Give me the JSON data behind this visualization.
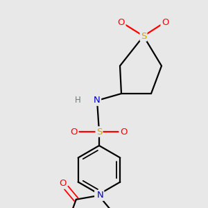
{
  "bg_color": "#e8e8e8",
  "atom_colors": {
    "S_ring": "#ccaa00",
    "S_sul": "#ccaa00",
    "O": "#ff0000",
    "N": "#0000cc",
    "C": "#000000",
    "H": "#5f8080"
  },
  "bond_color": "#000000",
  "lw": 1.6,
  "lw_double": 1.3,
  "fs": 9.5
}
